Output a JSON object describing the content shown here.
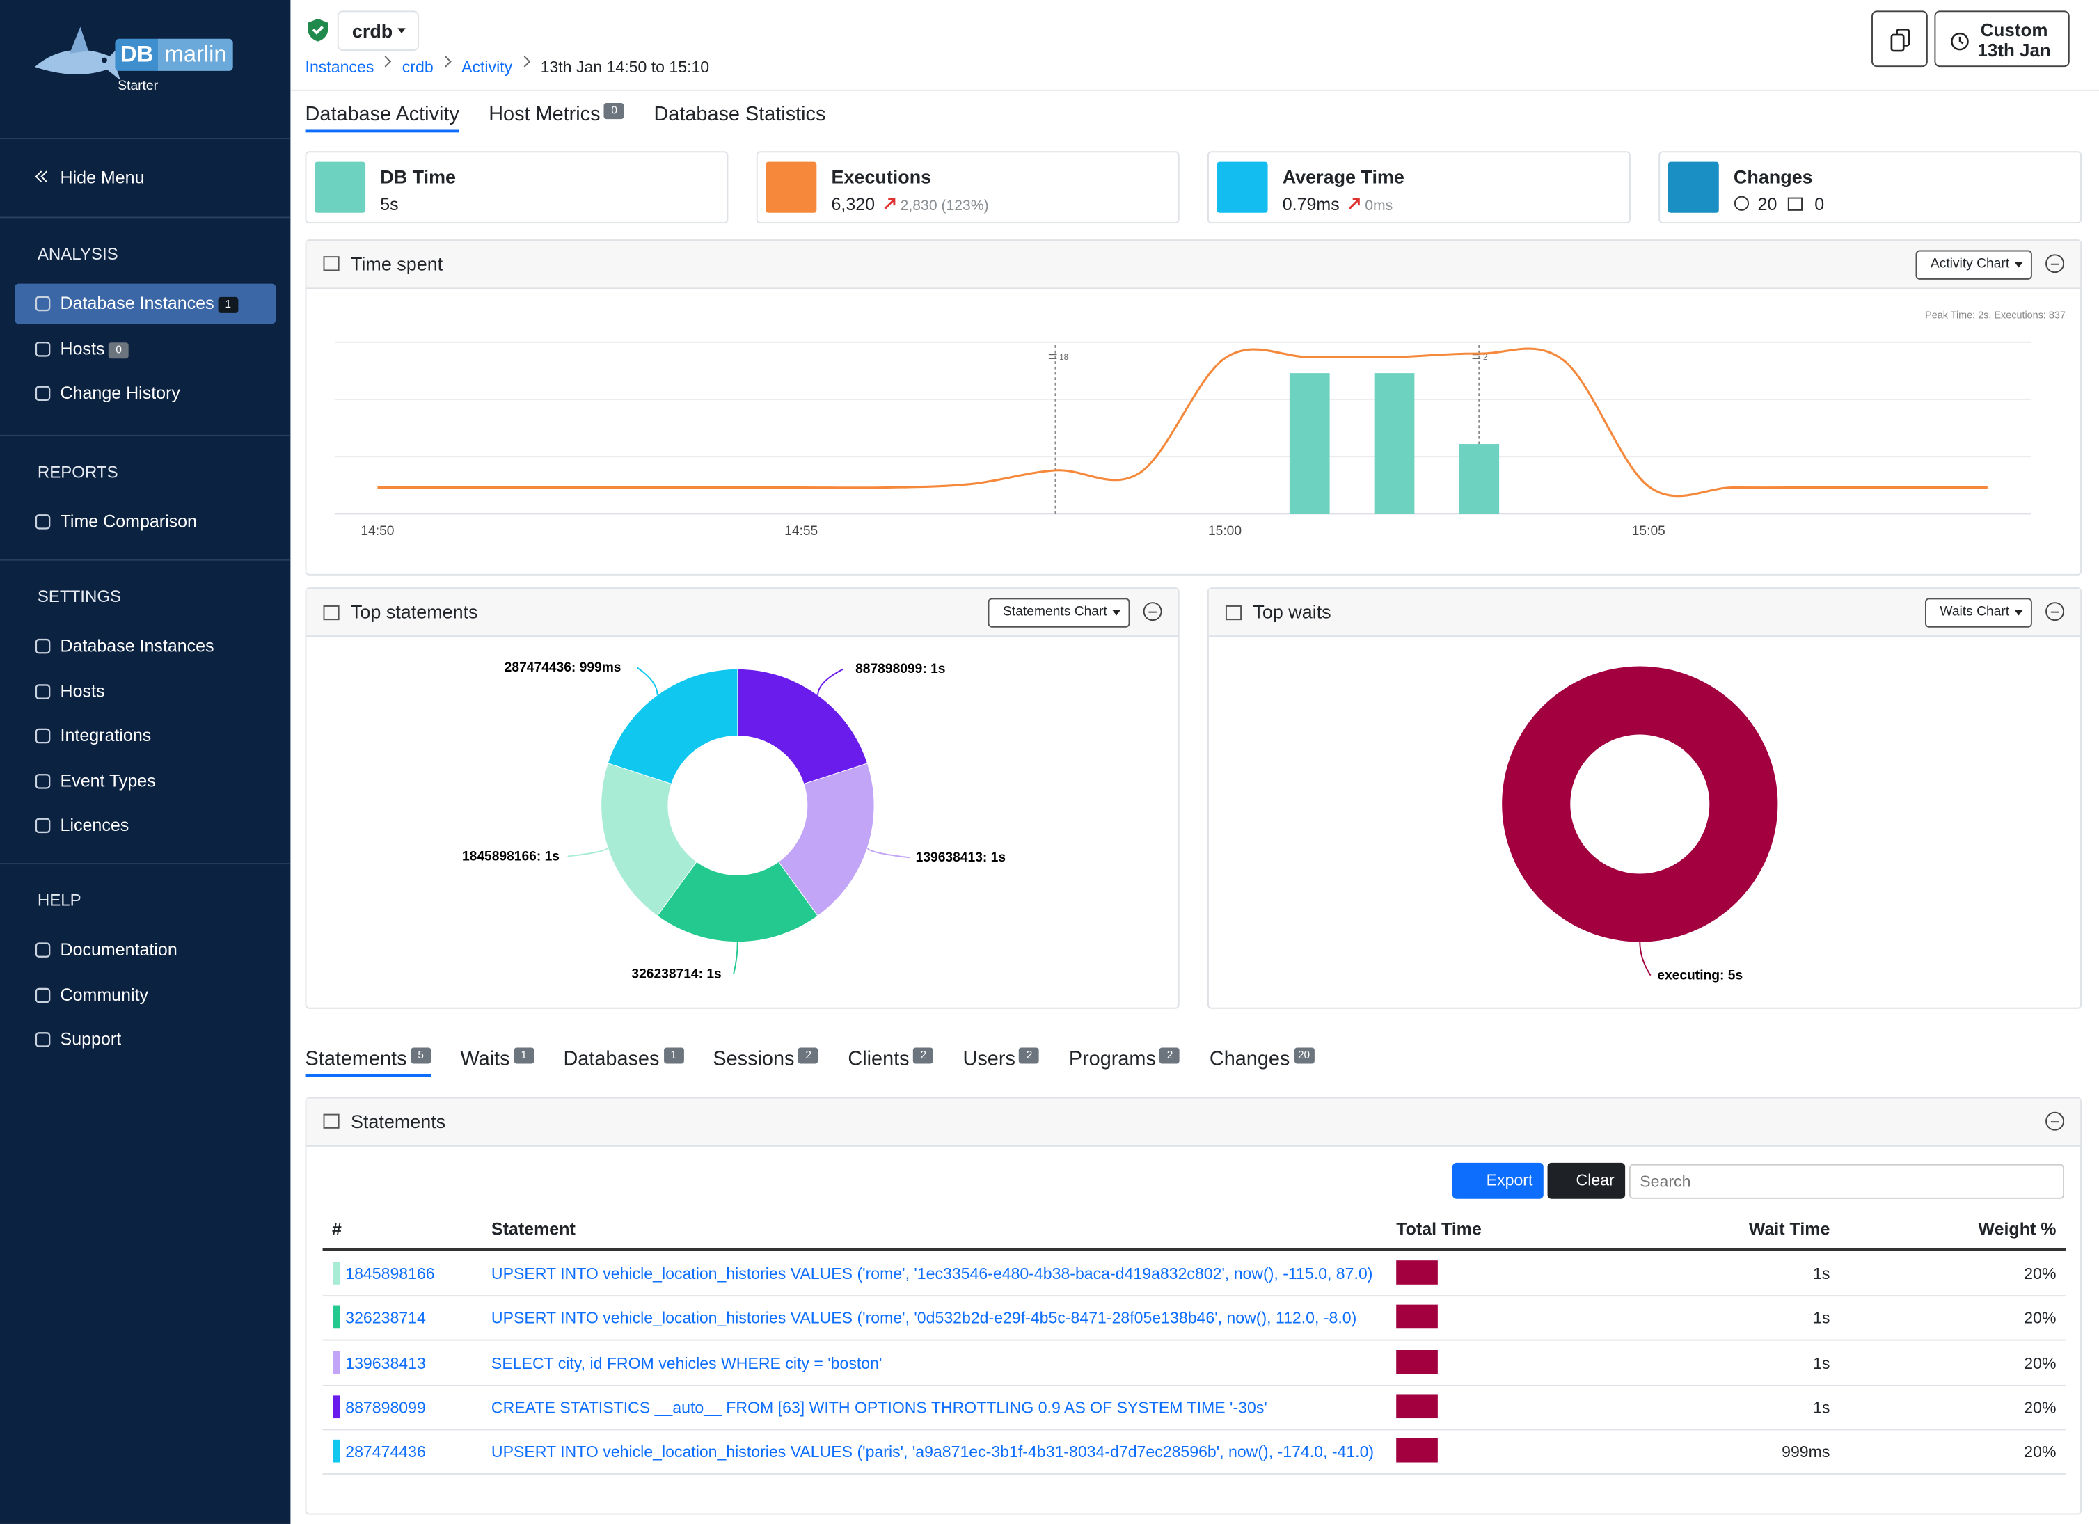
{
  "sidebar": {
    "logo": {
      "left": "DB",
      "right": "marlin",
      "edition": "Starter"
    },
    "hide_menu": "Hide Menu",
    "sections": [
      {
        "title": "ANALYSIS",
        "items": [
          {
            "label": "Database Instances",
            "badge": "1"
          },
          {
            "label": "Hosts",
            "badge": "0"
          },
          {
            "label": "Change History"
          }
        ]
      },
      {
        "title": "REPORTS",
        "items": [
          {
            "label": "Time Comparison"
          }
        ]
      },
      {
        "title": "SETTINGS",
        "items": [
          {
            "label": "Database Instances"
          },
          {
            "label": "Hosts"
          },
          {
            "label": "Integrations"
          },
          {
            "label": "Event Types"
          },
          {
            "label": "Licences"
          }
        ]
      },
      {
        "title": "HELP",
        "items": [
          {
            "label": "Documentation"
          },
          {
            "label": "Community"
          },
          {
            "label": "Support"
          }
        ]
      }
    ]
  },
  "header": {
    "instance": "crdb",
    "breadcrumb": [
      "Instances",
      "crdb",
      "Activity",
      "13th Jan 14:50 to 15:10"
    ],
    "time_button": [
      "Custom",
      "13th Jan"
    ]
  },
  "tabs": [
    {
      "label": "Database Activity"
    },
    {
      "label": "Host Metrics",
      "badge": "0"
    },
    {
      "label": "Database Statistics"
    }
  ],
  "kpis": [
    {
      "title": "DB Time",
      "value": "5s",
      "color": "#6dd3c0"
    },
    {
      "title": "Executions",
      "value": "6,320",
      "change": "2,830 (123%)",
      "color": "#f5883a"
    },
    {
      "title": "Average Time",
      "value": "0.79ms",
      "change": "0ms",
      "color": "#14bdf0"
    },
    {
      "title": "Changes",
      "info": "20",
      "calendar": "0",
      "color": "#1a8fc4"
    }
  ],
  "time_spent": {
    "title": "Time spent",
    "button": "Activity Chart",
    "note": "Peak Time: 2s, Executions: 837",
    "annotations": [
      "18",
      "2"
    ],
    "chart_data": {
      "type": "line",
      "categories": [
        "14:50",
        null,
        null,
        null,
        null,
        "14:55",
        null,
        null,
        null,
        null,
        "15:00",
        null,
        null,
        null,
        null,
        "15:05",
        null,
        null,
        null,
        null
      ],
      "series": [
        {
          "type": "line",
          "color": "#f5883a",
          "values": [
            0.23,
            0.23,
            0.23,
            0.23,
            0.23,
            0.23,
            0.23,
            0.26,
            0.38,
            0.36,
            1.36,
            1.37,
            1.37,
            1.4,
            1.34,
            0.24,
            0.23,
            0.23,
            0.23,
            0.23
          ]
        },
        {
          "type": "bar",
          "color": "#6dd3c0",
          "values": [
            null,
            null,
            null,
            null,
            null,
            null,
            null,
            null,
            null,
            null,
            null,
            1.23,
            1.23,
            0.61,
            null,
            null,
            null,
            null,
            null,
            null
          ]
        }
      ],
      "ylim": [
        0,
        2
      ],
      "yticks": [
        0,
        0.5,
        1,
        1.5
      ],
      "grid": true
    }
  },
  "top_statements": {
    "title": "Top statements",
    "button": "Statements Chart",
    "chart_data": {
      "type": "donut",
      "categories": [
        "887898099",
        "139638413",
        "326238714",
        "1845898166",
        "287474436"
      ],
      "values": [
        1,
        1,
        1,
        1,
        0.999
      ],
      "labels": [
        "887898099: 1s",
        "139638413: 1s",
        "326238714: 1s",
        "1845898166: 1s",
        "287474436: 999ms"
      ],
      "colors": [
        "#6a1ced",
        "#c2a5f7",
        "#23c98e",
        "#a8ecd6",
        "#0fc7ef"
      ]
    }
  },
  "top_waits": {
    "title": "Top waits",
    "button": "Waits Chart",
    "chart_data": {
      "type": "donut",
      "categories": [
        "executing"
      ],
      "values": [
        5
      ],
      "labels": [
        "executing: 5s"
      ],
      "colors": [
        "#a3003f"
      ]
    }
  },
  "detail_tabs": [
    {
      "label": "Statements",
      "badge": "5"
    },
    {
      "label": "Waits",
      "badge": "1"
    },
    {
      "label": "Databases",
      "badge": "1"
    },
    {
      "label": "Sessions",
      "badge": "2"
    },
    {
      "label": "Clients",
      "badge": "2"
    },
    {
      "label": "Users",
      "badge": "2"
    },
    {
      "label": "Programs",
      "badge": "2"
    },
    {
      "label": "Changes",
      "badge": "20"
    }
  ],
  "statements": {
    "title": "Statements",
    "export": "Export",
    "clear": "Clear",
    "search_placeholder": "Search",
    "columns": [
      "#",
      "Statement",
      "Total Time",
      "Wait Time",
      "Weight %"
    ],
    "rows": [
      {
        "id": "1845898166",
        "statement": "UPSERT INTO vehicle_location_histories VALUES ('rome', '1ec33546-e480-4b38-baca-d419a832c802', now(), -115.0, 87.0)",
        "wait_time": "1s",
        "weight": "20%",
        "color": "#a8ecd6"
      },
      {
        "id": "326238714",
        "statement": "UPSERT INTO vehicle_location_histories VALUES ('rome', '0d532b2d-e29f-4b5c-8471-28f05e138b46', now(), 112.0, -8.0)",
        "wait_time": "1s",
        "weight": "20%",
        "color": "#23c98e"
      },
      {
        "id": "139638413",
        "statement": "SELECT city, id FROM vehicles WHERE city = 'boston'",
        "wait_time": "1s",
        "weight": "20%",
        "color": "#c2a5f7"
      },
      {
        "id": "887898099",
        "statement": "CREATE STATISTICS __auto__ FROM [63] WITH OPTIONS THROTTLING 0.9 AS OF SYSTEM TIME '-30s'",
        "wait_time": "1s",
        "weight": "20%",
        "color": "#6a1ced"
      },
      {
        "id": "287474436",
        "statement": "UPSERT INTO vehicle_location_histories VALUES ('paris', 'a9a871ec-3b1f-4b31-8034-d7d7ec28596b', now(), -174.0, -41.0)",
        "wait_time": "999ms",
        "weight": "20%",
        "color": "#0fc7ef"
      }
    ]
  }
}
